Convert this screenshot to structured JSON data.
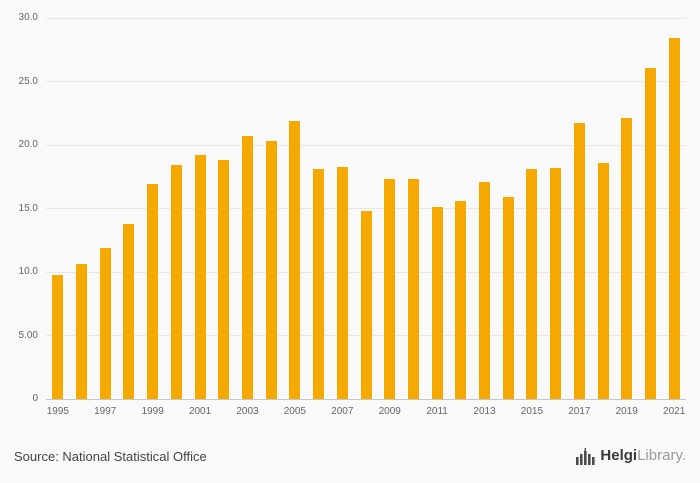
{
  "chart_data": {
    "type": "bar",
    "categories": [
      "1995",
      "1996",
      "1997",
      "1998",
      "1999",
      "2000",
      "2001",
      "2002",
      "2003",
      "2004",
      "2005",
      "2006",
      "2007",
      "2008",
      "2009",
      "2010",
      "2011",
      "2012",
      "2013",
      "2014",
      "2015",
      "2016",
      "2017",
      "2018",
      "2019",
      "2020",
      "2021"
    ],
    "values": [
      9.8,
      10.6,
      11.9,
      13.8,
      16.9,
      18.4,
      19.2,
      18.8,
      20.7,
      20.3,
      21.9,
      18.1,
      18.3,
      14.8,
      17.3,
      17.3,
      15.1,
      15.6,
      17.1,
      15.9,
      18.1,
      18.2,
      21.7,
      18.6,
      22.1,
      26.1,
      28.4
    ],
    "title": "",
    "xlabel": "",
    "ylabel": "",
    "ylim": [
      0,
      30
    ],
    "grid": true,
    "legend": false,
    "bar_color": "#F5A800",
    "y_ticks": [
      {
        "value": 0,
        "label": "0"
      },
      {
        "value": 5,
        "label": "5.00"
      },
      {
        "value": 10,
        "label": "10.0"
      },
      {
        "value": 15,
        "label": "15.0"
      },
      {
        "value": 20,
        "label": "20.0"
      },
      {
        "value": 25,
        "label": "25.0"
      },
      {
        "value": 30,
        "label": "30.0"
      }
    ],
    "x_ticks": [
      {
        "index": 0,
        "label": "1995"
      },
      {
        "index": 2,
        "label": "1997"
      },
      {
        "index": 4,
        "label": "1999"
      },
      {
        "index": 6,
        "label": "2001"
      },
      {
        "index": 8,
        "label": "2003"
      },
      {
        "index": 10,
        "label": "2005"
      },
      {
        "index": 12,
        "label": "2007"
      },
      {
        "index": 14,
        "label": "2009"
      },
      {
        "index": 16,
        "label": "2011"
      },
      {
        "index": 18,
        "label": "2013"
      },
      {
        "index": 20,
        "label": "2015"
      },
      {
        "index": 22,
        "label": "2017"
      },
      {
        "index": 24,
        "label": "2019"
      },
      {
        "index": 26,
        "label": "2021"
      }
    ]
  },
  "footer": {
    "source": "Source: National Statistical Office",
    "logo": {
      "primary": "Helgi",
      "secondary": "Library."
    }
  }
}
